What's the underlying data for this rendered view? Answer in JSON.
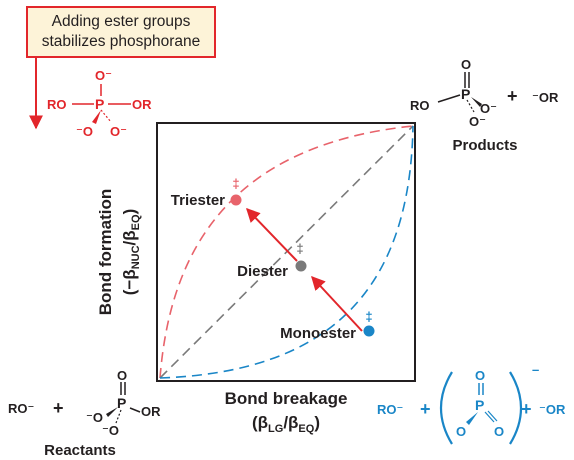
{
  "callout": {
    "line1": "Adding ester groups",
    "line2": "stabilizes phosphorane"
  },
  "axes": {
    "x_label": "Bond breakage",
    "x_sub": "(βLG/βEQ)",
    "y_label": "Bond formation",
    "y_sub": "(−βNUC/βEQ)"
  },
  "points": {
    "triester": "Triester",
    "diester": "Diester",
    "monoester": "Monoester",
    "dagger": "‡"
  },
  "corners": {
    "products": "Products",
    "reactants": "Reactants"
  },
  "chem": {
    "ro": "RO",
    "or": "OR",
    "ro_minus": "RO⁻",
    "minus_or": "⁻OR",
    "o": "O",
    "o_minus": "O⁻",
    "minus_o": "⁻O",
    "p": "P",
    "plus": "+",
    "minus": "–",
    "bracket_left": "(",
    "bracket_right": ")"
  },
  "colors": {
    "red": "#e2262b",
    "pink_curve": "#e8636b",
    "blue": "#1a86c7",
    "gray": "#7a7a7a",
    "dark": "#231f20",
    "callout_bg": "#fdf3d8"
  }
}
